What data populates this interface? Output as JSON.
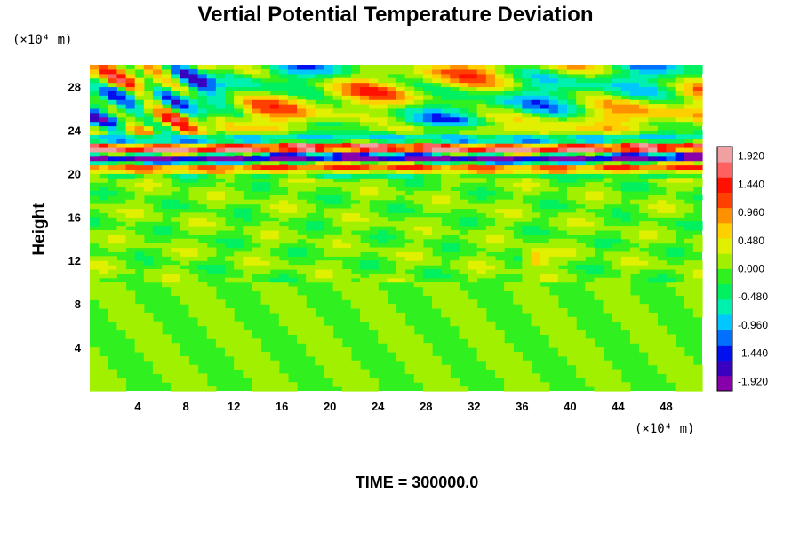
{
  "chart_data": {
    "type": "heatmap",
    "title": "Vertial Potential Temperature Deviation",
    "ylabel": "Height",
    "xlabel": "",
    "x_unit": "(×10⁴ m)",
    "y_unit": "(×10⁴ m)",
    "x_ticks": [
      "4",
      "8",
      "12",
      "16",
      "20",
      "24",
      "28",
      "32",
      "36",
      "40",
      "44",
      "48"
    ],
    "y_ticks": [
      "4",
      "8",
      "12",
      "16",
      "20",
      "24",
      "28"
    ],
    "xlim": [
      0,
      51
    ],
    "ylim": [
      0,
      30
    ],
    "grid": false,
    "colorbar": {
      "labels": [
        "1.920",
        "1.440",
        "0.960",
        "0.480",
        "0.000",
        "-0.480",
        "-0.960",
        "-1.440",
        "-1.920"
      ],
      "range": [
        -2.08,
        2.08
      ],
      "colors": [
        "#8800aa",
        "#3a00c0",
        "#0010ee",
        "#0070ff",
        "#00c8ff",
        "#00f0b0",
        "#00f060",
        "#30f020",
        "#a0f000",
        "#e0f000",
        "#ffd000",
        "#ff9000",
        "#ff4000",
        "#ff1000",
        "#ff6060",
        "#f0a0a0"
      ]
    },
    "features": [
      {
        "desc": "strong alternating band",
        "y_range": [
          20,
          24
        ],
        "amplitude": 2.0
      },
      {
        "desc": "upper wavy perturbations",
        "y_range": [
          24,
          30
        ],
        "amplitude": 1.2
      },
      {
        "desc": "weak mid-level eddies",
        "y_range": [
          10,
          20
        ],
        "amplitude": 0.4
      },
      {
        "desc": "near-zero lower layer",
        "y_range": [
          0,
          10
        ],
        "amplitude": 0.1
      }
    ],
    "time_label": "TIME = 300000.0"
  }
}
